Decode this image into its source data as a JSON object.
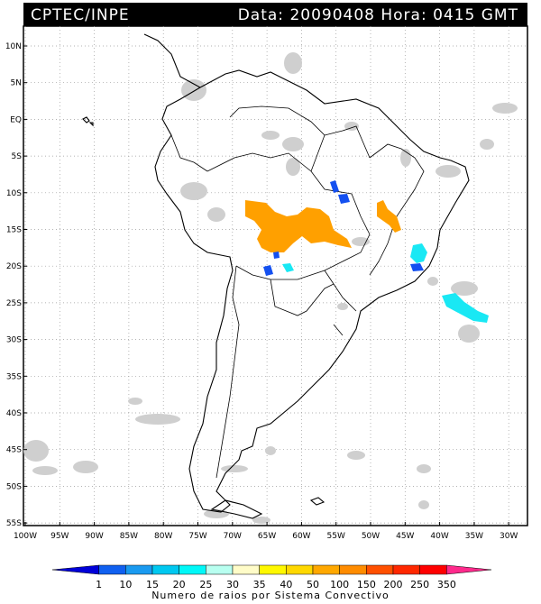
{
  "header": {
    "org": "CPTEC/INPE",
    "stamp": "Data: 20090408 Hora: 0415 GMT"
  },
  "lat_labels": [
    "10N",
    "5N",
    "EQ",
    "5S",
    "10S",
    "15S",
    "20S",
    "25S",
    "30S",
    "35S",
    "40S",
    "45S",
    "50S",
    "55S"
  ],
  "lon_labels": [
    "100W",
    "95W",
    "90W",
    "85W",
    "80W",
    "75W",
    "70W",
    "65W",
    "60W",
    "55W",
    "50W",
    "45W",
    "40W",
    "35W",
    "30W"
  ],
  "legend": {
    "title": "Numero de raios por Sistema Convectivo",
    "ticks": [
      "1",
      "10",
      "15",
      "20",
      "25",
      "30",
      "35",
      "40",
      "50",
      "100",
      "150",
      "200",
      "250",
      "350"
    ],
    "colors": [
      "#0000d8",
      "#1060f0",
      "#1a9af0",
      "#00c8f0",
      "#00f8f8",
      "#b8fff0",
      "#fffcc8",
      "#fff800",
      "#ffd800",
      "#ffa800",
      "#ff8c00",
      "#ff5000",
      "#ff2800",
      "#ff0000",
      "#ff2a8c"
    ]
  },
  "colors": {
    "cloud": "#cfcfcf",
    "cyan": "#19e8f4",
    "blue": "#1450f0",
    "orange": "#ffa000"
  }
}
